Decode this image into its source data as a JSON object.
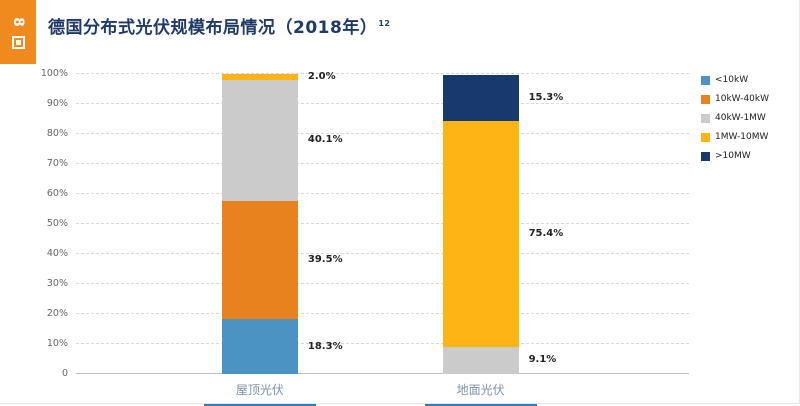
{
  "corner": {
    "page_number": "8"
  },
  "header": {
    "title": "德国分布式光伏规模布局情况（2018年）",
    "footnote_ref": "12"
  },
  "chart_data": {
    "type": "bar",
    "stacked": true,
    "title": "德国分布式光伏规模布局情况（2018年）",
    "categories": [
      "屋顶光伏",
      "地面光伏"
    ],
    "series": [
      {
        "name": "<10kW",
        "color": "#4a93c3",
        "values": [
          18.3,
          0
        ]
      },
      {
        "name": "10kW-40kW",
        "color": "#e8821e",
        "values": [
          39.5,
          0
        ]
      },
      {
        "name": "40kW-1MW",
        "color": "#cbcbcb",
        "values": [
          40.1,
          9.1
        ]
      },
      {
        "name": "1MW-10MW",
        "color": "#fcb514",
        "values": [
          2.0,
          75.4
        ]
      },
      {
        "name": ">10MW",
        "color": "#17396b",
        "values": [
          0,
          15.3
        ]
      }
    ],
    "segment_labels": [
      [
        "18.3%",
        "39.5%",
        "40.1%",
        "2.0%",
        ""
      ],
      [
        "",
        "",
        "9.1%",
        "75.4%",
        "15.3%"
      ]
    ],
    "ylim": [
      0,
      100
    ],
    "yticks": [
      "0",
      "10%",
      "20%",
      "30%",
      "40%",
      "50%",
      "60%",
      "70%",
      "80%",
      "90%",
      "100%"
    ],
    "grid": true,
    "legend_position": "right",
    "bar_centers_pct": [
      30,
      66
    ]
  }
}
